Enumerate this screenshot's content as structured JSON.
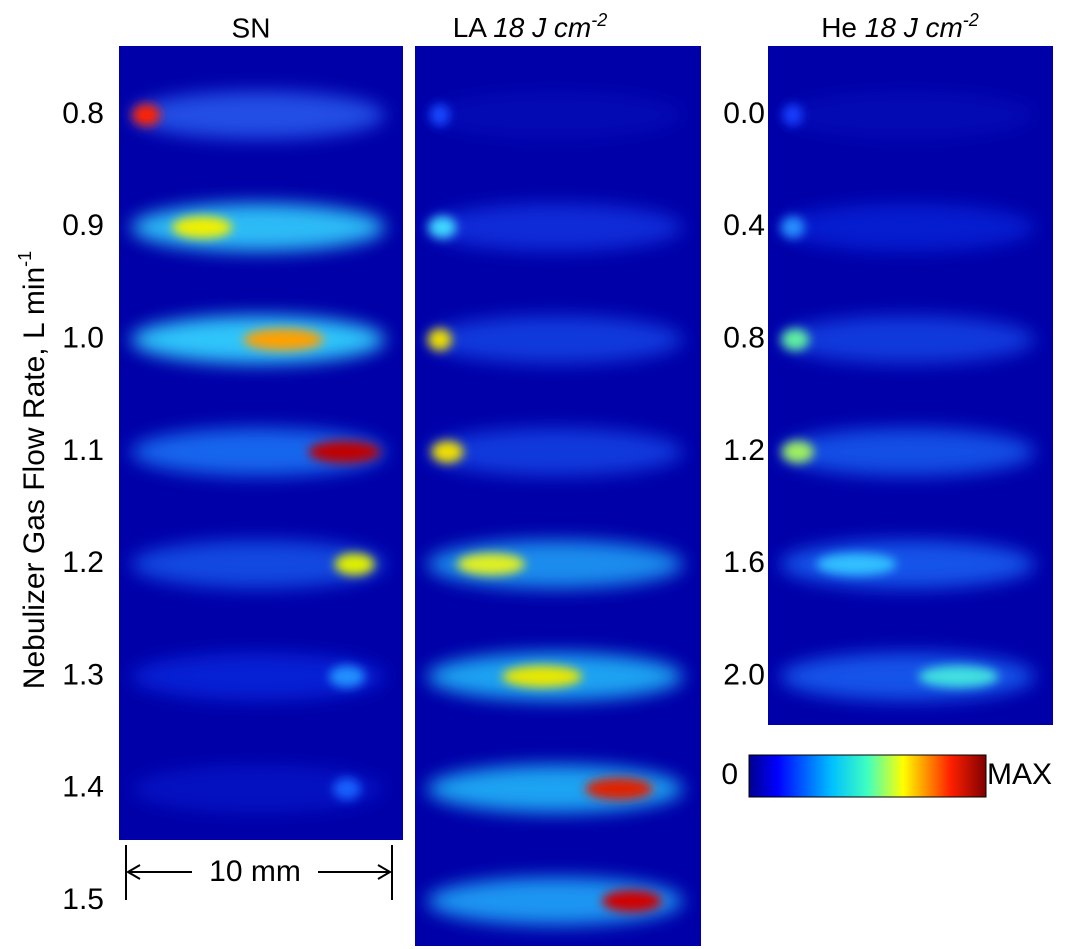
{
  "panels": [
    {
      "title": "SN"
    },
    {
      "title": "LA",
      "title_italic": "18 J cm",
      "title_superscript": "-2"
    },
    {
      "title": "He",
      "title_italic": "18 J cm",
      "title_superscript": "-2"
    }
  ],
  "y_axis_label": {
    "text": "Nebulizer Gas Flow Rate, L min",
    "superscript": "-1"
  },
  "left_row_labels": [
    "0.8",
    "0.9",
    "1.0",
    "1.1",
    "1.2",
    "1.3",
    "1.4",
    "1.5"
  ],
  "he_row_labels": [
    "0.0",
    "0.4",
    "0.8",
    "1.2",
    "1.6",
    "2.0"
  ],
  "colorbar": {
    "min_label": "0",
    "max_label": "MAX"
  },
  "scale_bar": {
    "label": "10 mm"
  }
}
